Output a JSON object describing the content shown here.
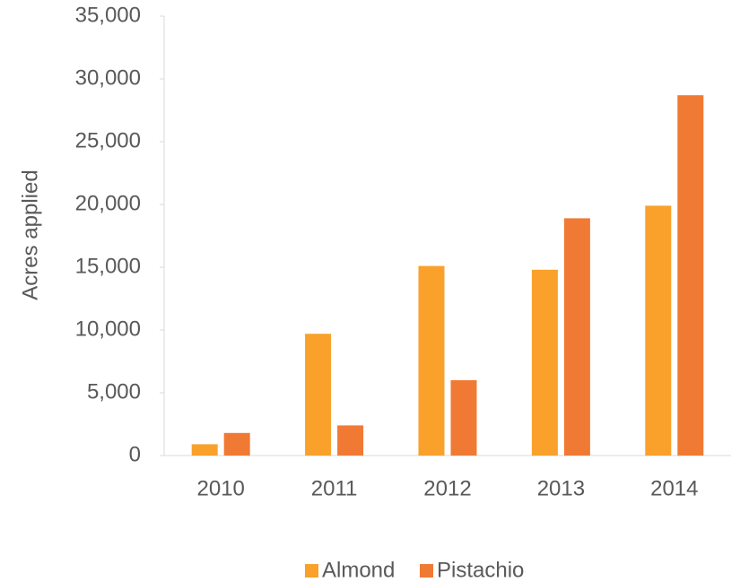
{
  "chart_data": {
    "type": "bar",
    "y_label": "Acres applied",
    "categories": [
      "2010",
      "2011",
      "2012",
      "2013",
      "2014"
    ],
    "series": [
      {
        "name": "Almond",
        "color": "#f9a12a",
        "values": [
          900,
          9700,
          15100,
          14800,
          19900
        ]
      },
      {
        "name": "Pistachio",
        "color": "#f07a33",
        "values": [
          1800,
          2400,
          6000,
          18900,
          28700
        ]
      }
    ],
    "ylim": [
      0,
      35000
    ],
    "yticks": [
      0,
      {
        "value": 5000,
        "label": "5,000"
      },
      {
        "value": 10000,
        "label": "10,000"
      },
      {
        "value": 15000,
        "label": "15,000"
      },
      {
        "value": 20000,
        "label": "20,000"
      },
      {
        "value": 25000,
        "label": "25,000"
      },
      {
        "value": 30000,
        "label": "30,000"
      },
      {
        "value": 35000,
        "label": "35,000"
      }
    ],
    "legend": "bottom"
  }
}
